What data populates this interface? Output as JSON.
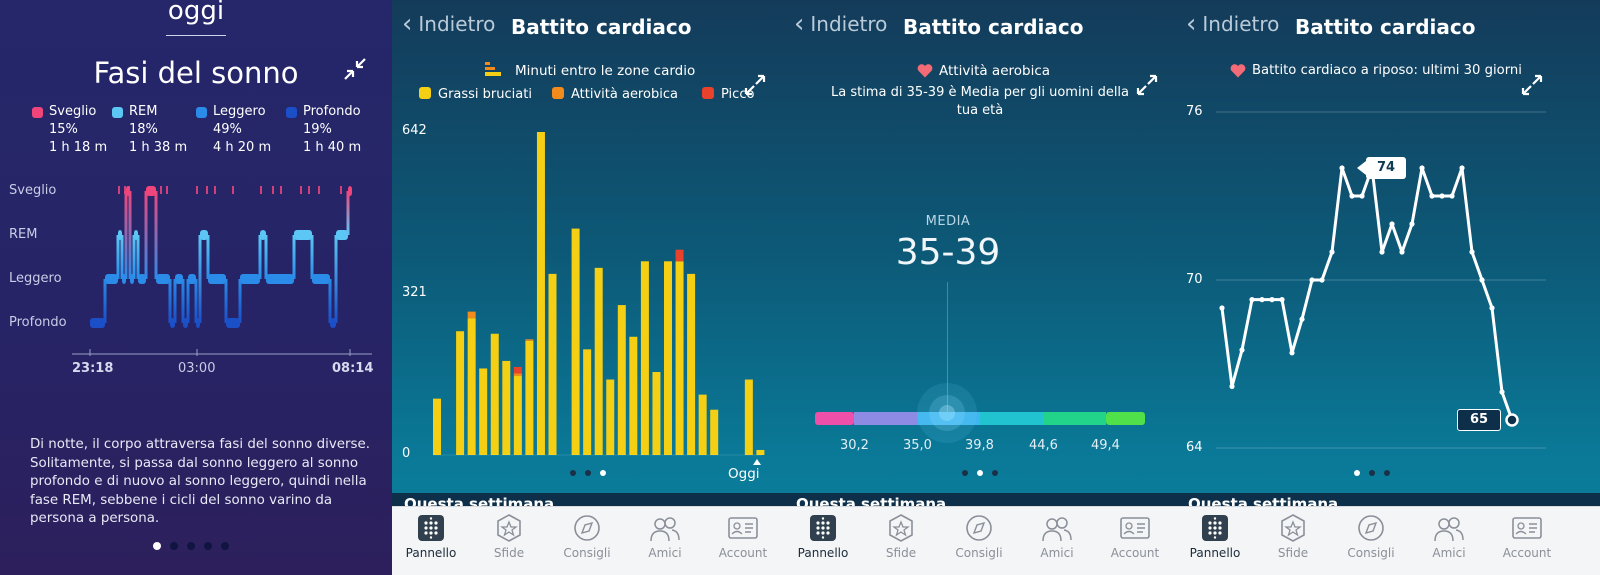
{
  "sleep": {
    "header": "oggi",
    "title": "Fasi del sonno",
    "stages": [
      {
        "name": "Sveglio",
        "pct": "15%",
        "dur": "1 h 18 m",
        "color": "#f0457b"
      },
      {
        "name": "REM",
        "pct": "18%",
        "dur": "1 h 38 m",
        "color": "#5cc7f5"
      },
      {
        "name": "Leggero",
        "pct": "49%",
        "dur": "4 h 20 m",
        "color": "#2a8be8"
      },
      {
        "name": "Profondo",
        "pct": "19%",
        "dur": "1 h 40 m",
        "color": "#1b4fc7"
      }
    ],
    "row_labels": [
      "Sveglio",
      "REM",
      "Leggero",
      "Profondo"
    ],
    "time_labels": [
      "23:18",
      "03:00",
      "08:14"
    ],
    "description": "Di notte, il corpo attraversa fasi del sonno diverse. Solitamente, si passa dal sonno leggero al sonno profondo e di nuovo al sonno leggero, quindi nella fase REM, sebbene i cicli del sonno varino da persona a persona."
  },
  "zones": {
    "back_label": "Indietro",
    "title": "Battito cardiaco",
    "legend_title": "Minuti entro le zone cardio",
    "legend": [
      {
        "name": "Grassi bruciati",
        "color": "#f5cf14"
      },
      {
        "name": "Attività aerobica",
        "color": "#f28a1c"
      },
      {
        "name": "Picco",
        "color": "#e8412c"
      }
    ],
    "y_ticks": [
      "642",
      "321",
      "0"
    ],
    "today_label": "Oggi",
    "section_peek": "Questa settimana"
  },
  "aerobic": {
    "back_label": "Indietro",
    "title": "Battito cardiaco",
    "heading": "Attività aerobica",
    "subtitle": "La stima di 35-39 è Media per gli uomini della tua età",
    "media_label": "MEDIA",
    "value": "35-39",
    "scale_labels": [
      "30,2",
      "35,0",
      "39,8",
      "44,6",
      "49,4"
    ],
    "section_peek": "Questa settimana"
  },
  "resting": {
    "back_label": "Indietro",
    "title": "Battito cardiaco",
    "heading": "Battito cardiaco a riposo: ultimi 30 giorni",
    "y_ticks": [
      "76",
      "70",
      "64"
    ],
    "max_label": "74",
    "last_label": "65",
    "section_peek": "Questa settimana"
  },
  "tabbar": {
    "items": [
      "Pannello",
      "Sfide",
      "Consigli",
      "Amici",
      "Account"
    ]
  },
  "chart_data": [
    {
      "type": "bar",
      "title": "Minuti entro le zone cardio",
      "ylim": [
        0,
        642
      ],
      "series": [
        {
          "name": "Grassi bruciati",
          "values": [
            112,
            0,
            246,
            272,
            172,
            241,
            187,
            157,
            227,
            642,
            360,
            0,
            450,
            210,
            372,
            150,
            298,
            235,
            385,
            165,
            385,
            385,
            360,
            120,
            90,
            0,
            0,
            150,
            10
          ]
        },
        {
          "name": "Attività aerobica",
          "values": [
            0,
            0,
            0,
            13,
            0,
            0,
            0,
            5,
            3,
            0,
            0,
            0,
            0,
            0,
            0,
            0,
            0,
            0,
            0,
            0,
            0,
            0,
            0,
            0,
            0,
            0,
            0,
            0,
            0
          ]
        },
        {
          "name": "Picco",
          "values": [
            0,
            0,
            0,
            0,
            0,
            0,
            0,
            13,
            0,
            0,
            0,
            0,
            0,
            0,
            0,
            0,
            0,
            0,
            0,
            0,
            0,
            23,
            0,
            0,
            0,
            0,
            0,
            0,
            0
          ]
        }
      ]
    },
    {
      "type": "line",
      "title": "Battito cardiaco a riposo: ultimi 30 giorni",
      "ylim": [
        64,
        76
      ],
      "series": [
        {
          "values": [
            69,
            66.2,
            67.5,
            69.3,
            69.3,
            69.3,
            69.3,
            67.4,
            68.6,
            70,
            70,
            71,
            74,
            73,
            73,
            74,
            71,
            72,
            71,
            72,
            74,
            73,
            73,
            73,
            74,
            71,
            70,
            69,
            66,
            65
          ]
        }
      ]
    }
  ]
}
